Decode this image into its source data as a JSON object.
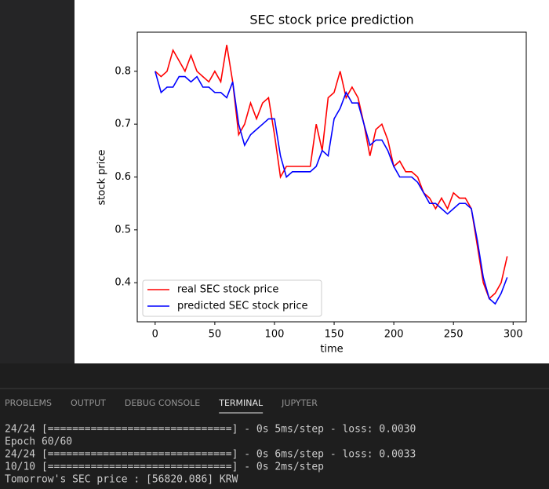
{
  "chart_data": {
    "type": "line",
    "title": "SEC stock price prediction",
    "xlabel": "time",
    "ylabel": "stock price",
    "x": [
      0,
      5,
      10,
      15,
      20,
      25,
      30,
      35,
      40,
      45,
      50,
      55,
      60,
      65,
      70,
      75,
      80,
      85,
      90,
      95,
      100,
      105,
      110,
      115,
      120,
      125,
      130,
      135,
      140,
      145,
      150,
      155,
      160,
      165,
      170,
      175,
      180,
      185,
      190,
      195,
      200,
      205,
      210,
      215,
      220,
      225,
      230,
      235,
      240,
      245,
      250,
      255,
      260,
      265,
      270,
      275,
      280,
      285,
      290,
      295
    ],
    "series": [
      {
        "name": "real SEC stock price",
        "color": "#ff0000",
        "values": [
          0.8,
          0.79,
          0.8,
          0.84,
          0.82,
          0.8,
          0.83,
          0.8,
          0.79,
          0.78,
          0.8,
          0.78,
          0.85,
          0.78,
          0.68,
          0.7,
          0.74,
          0.71,
          0.74,
          0.75,
          0.68,
          0.6,
          0.62,
          0.62,
          0.62,
          0.62,
          0.62,
          0.7,
          0.65,
          0.75,
          0.76,
          0.8,
          0.75,
          0.77,
          0.75,
          0.7,
          0.64,
          0.69,
          0.7,
          0.67,
          0.62,
          0.63,
          0.61,
          0.61,
          0.6,
          0.57,
          0.56,
          0.54,
          0.56,
          0.54,
          0.57,
          0.56,
          0.56,
          0.54,
          0.47,
          0.4,
          0.37,
          0.38,
          0.4,
          0.45
        ]
      },
      {
        "name": "predicted SEC stock price",
        "color": "#0000ff",
        "values": [
          0.8,
          0.76,
          0.77,
          0.77,
          0.79,
          0.79,
          0.78,
          0.79,
          0.77,
          0.77,
          0.76,
          0.76,
          0.75,
          0.78,
          0.7,
          0.66,
          0.68,
          0.69,
          0.7,
          0.71,
          0.71,
          0.64,
          0.6,
          0.61,
          0.61,
          0.61,
          0.61,
          0.62,
          0.65,
          0.64,
          0.71,
          0.73,
          0.76,
          0.74,
          0.74,
          0.7,
          0.66,
          0.67,
          0.67,
          0.65,
          0.62,
          0.6,
          0.6,
          0.6,
          0.59,
          0.57,
          0.55,
          0.55,
          0.54,
          0.53,
          0.54,
          0.55,
          0.55,
          0.54,
          0.48,
          0.41,
          0.37,
          0.36,
          0.38,
          0.41
        ]
      }
    ],
    "xlim": [
      -15,
      311
    ],
    "ylim": [
      0.326,
      0.874
    ],
    "xticks": [
      0,
      50,
      100,
      150,
      200,
      250,
      300
    ],
    "yticks": [
      0.4,
      0.5,
      0.6,
      0.7,
      0.8
    ],
    "legend": "lower left"
  },
  "panel": {
    "tabs": [
      "PROBLEMS",
      "OUTPUT",
      "DEBUG CONSOLE",
      "TERMINAL",
      "JUPYTER"
    ],
    "active_tab": 3,
    "lines": [
      "24/24 [==============================] - 0s 5ms/step - loss: 0.0030",
      "Epoch 60/60",
      "24/24 [==============================] - 0s 6ms/step - loss: 0.0033",
      "10/10 [==============================] - 0s 2ms/step",
      "Tomorrow's SEC price : [56820.086] KRW"
    ]
  }
}
